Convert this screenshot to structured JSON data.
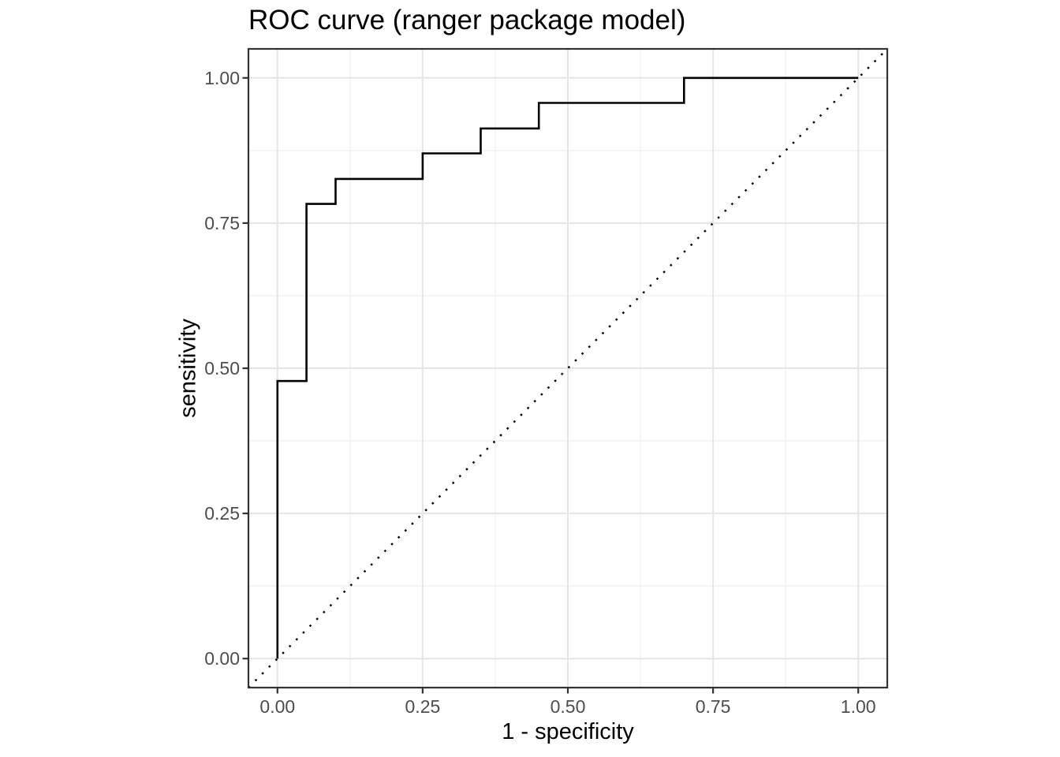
{
  "chart_data": {
    "type": "line",
    "subtype": "roc-step-curve",
    "title": "ROC curve (ranger package model)",
    "xlabel": "1 - specificity",
    "ylabel": "sensitivity",
    "xlim": [
      -0.05,
      1.05
    ],
    "ylim": [
      -0.05,
      1.05
    ],
    "grid": "major-and-minor",
    "legend": "none",
    "x_ticks": [
      {
        "label": "0.00",
        "value": 0
      },
      {
        "label": "0.25",
        "value": 0.25
      },
      {
        "label": "0.50",
        "value": 0.5
      },
      {
        "label": "0.75",
        "value": 0.75
      },
      {
        "label": "1.00",
        "value": 1
      }
    ],
    "y_ticks": [
      {
        "label": "0.00",
        "value": 0
      },
      {
        "label": "0.25",
        "value": 0.25
      },
      {
        "label": "0.50",
        "value": 0.5
      },
      {
        "label": "0.75",
        "value": 0.75
      },
      {
        "label": "1.00",
        "value": 1
      }
    ],
    "x_minor_gridlines": [
      0.125,
      0.375,
      0.625,
      0.875
    ],
    "y_minor_gridlines": [
      0.125,
      0.375,
      0.625,
      0.875
    ],
    "series": [
      {
        "name": "ROC curve",
        "style": "solid-step",
        "color": "#000000",
        "points": [
          [
            0,
            0
          ],
          [
            0,
            0.478
          ],
          [
            0.05,
            0.478
          ],
          [
            0.05,
            0.783
          ],
          [
            0.1,
            0.783
          ],
          [
            0.1,
            0.826
          ],
          [
            0.25,
            0.826
          ],
          [
            0.25,
            0.87
          ],
          [
            0.35,
            0.87
          ],
          [
            0.35,
            0.913
          ],
          [
            0.45,
            0.913
          ],
          [
            0.45,
            0.957
          ],
          [
            0.7,
            0.957
          ],
          [
            0.7,
            1
          ],
          [
            1,
            1
          ]
        ]
      },
      {
        "name": "chance diagonal",
        "style": "dotted",
        "color": "#000000",
        "points": [
          [
            -0.05,
            -0.05
          ],
          [
            1.05,
            1.05
          ]
        ]
      }
    ],
    "colors": {
      "background": "#FFFFFF",
      "panel_background": "#FFFFFF",
      "panel_border": "#333333",
      "grid_major": "#E5E5E5",
      "grid_minor": "#EFEFEF",
      "tick_mark": "#333333",
      "tick_label": "#4D4D4D",
      "axis_title": "#000000",
      "plot_title": "#000000",
      "curve": "#000000",
      "diagonal": "#000000"
    }
  }
}
